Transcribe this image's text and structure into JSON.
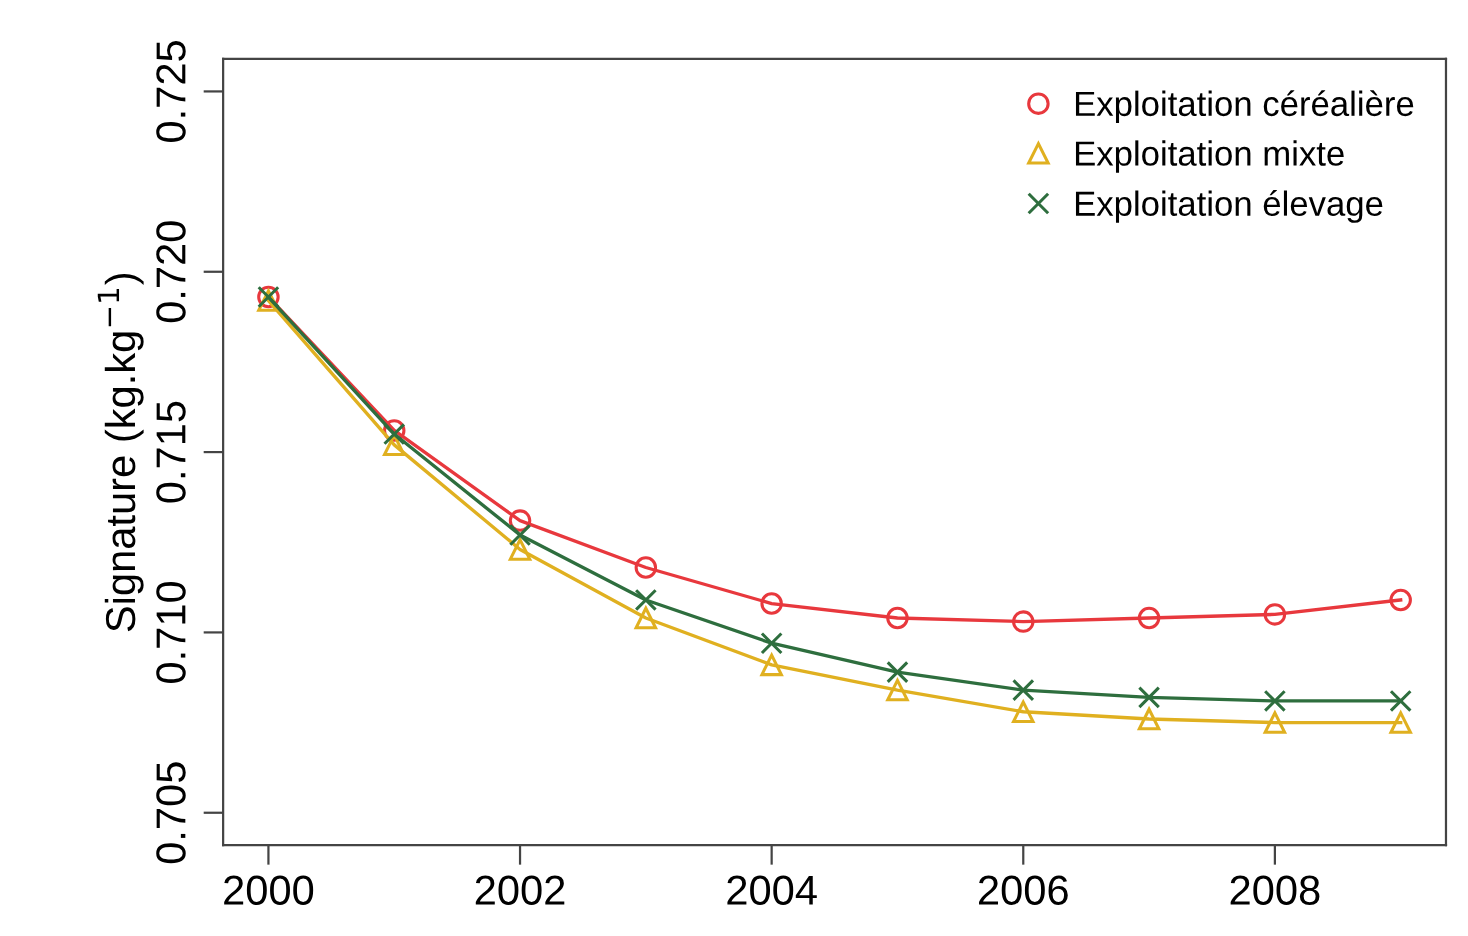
{
  "chart_data": {
    "type": "line",
    "ylabel": "Signature (kg.kg$^{−1}$)",
    "x": [
      2000,
      2001,
      2002,
      2003,
      2004,
      2005,
      2006,
      2007,
      2008,
      2009
    ],
    "xlim": [
      1999.64,
      2009.36
    ],
    "xticks": [
      2000,
      2002,
      2004,
      2006,
      2008
    ],
    "ylim": [
      0.7041,
      0.7259
    ],
    "yticks": [
      0.705,
      {
        "value": 0.71,
        "label": "0.710"
      },
      0.715,
      {
        "value": 0.72,
        "label": "0.720"
      },
      0.725
    ],
    "series": [
      {
        "name": "Exploitation céréalière",
        "color": "#e8383d",
        "marker": "circle",
        "values": [
          0.7193,
          0.7156,
          0.7131,
          0.7118,
          0.7108,
          0.7104,
          0.7103,
          0.7104,
          0.7105,
          0.7109
        ]
      },
      {
        "name": "Exploitation mixte",
        "color": "#e0b020",
        "marker": "triangle",
        "values": [
          0.7192,
          0.7152,
          0.7123,
          0.7104,
          0.7091,
          0.7084,
          0.7078,
          0.7076,
          0.7075,
          0.7075
        ]
      },
      {
        "name": "Exploitation élevage",
        "color": "#2e6e3e",
        "marker": "cross",
        "values": [
          0.7193,
          0.7155,
          0.7127,
          0.7109,
          0.7097,
          0.7089,
          0.7084,
          0.7082,
          0.7081,
          0.7081
        ]
      }
    ],
    "grid": false,
    "legend": "top right"
  }
}
